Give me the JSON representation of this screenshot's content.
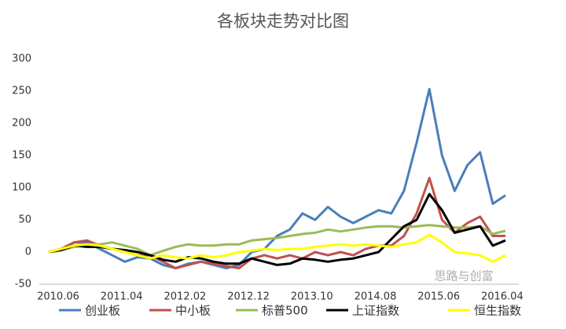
{
  "chart_data": {
    "type": "line",
    "title": "各板块走势对比图",
    "categories": [
      "2010.06",
      null,
      null,
      null,
      null,
      "2011.04",
      null,
      null,
      null,
      null,
      "2012.02",
      null,
      null,
      null,
      null,
      "2012.12",
      null,
      null,
      null,
      null,
      "2013.10",
      null,
      null,
      null,
      null,
      "2014.08",
      null,
      null,
      null,
      null,
      "2015.06",
      null,
      null,
      null,
      null,
      "2016.04",
      null
    ],
    "series": [
      {
        "name": "创业板",
        "color": "#4a7ebb",
        "values": [
          0,
          5,
          15,
          15,
          5,
          -5,
          -15,
          -8,
          -10,
          -20,
          -25,
          -18,
          -15,
          -20,
          -25,
          -20,
          0,
          5,
          25,
          35,
          60,
          50,
          70,
          55,
          45,
          55,
          65,
          60,
          95,
          170,
          253,
          150,
          95,
          135,
          155,
          75,
          88
        ]
      },
      {
        "name": "中小板",
        "color": "#c0504d",
        "values": [
          0,
          5,
          15,
          18,
          10,
          5,
          0,
          -5,
          -5,
          -15,
          -25,
          -20,
          -15,
          -18,
          -22,
          -25,
          -10,
          -5,
          -10,
          -5,
          -10,
          0,
          -5,
          0,
          -5,
          5,
          10,
          10,
          25,
          60,
          115,
          50,
          30,
          45,
          55,
          25,
          25
        ]
      },
      {
        "name": "标普500",
        "color": "#9bbb59",
        "values": [
          0,
          3,
          8,
          12,
          12,
          15,
          10,
          5,
          -5,
          2,
          8,
          12,
          10,
          10,
          12,
          12,
          18,
          20,
          22,
          25,
          28,
          30,
          35,
          32,
          35,
          38,
          40,
          40,
          38,
          40,
          42,
          40,
          38,
          38,
          40,
          28,
          33
        ]
      },
      {
        "name": "上证指数",
        "color": "#000000",
        "values": [
          0,
          3,
          10,
          8,
          8,
          5,
          3,
          0,
          -5,
          -12,
          -15,
          -8,
          -10,
          -15,
          -18,
          -18,
          -10,
          -15,
          -20,
          -18,
          -10,
          -12,
          -15,
          -12,
          -10,
          -5,
          0,
          20,
          40,
          50,
          90,
          65,
          30,
          35,
          40,
          10,
          18
        ]
      },
      {
        "name": "恒生指数",
        "color": "#ffff00",
        "values": [
          0,
          5,
          10,
          12,
          10,
          5,
          0,
          -5,
          -10,
          -5,
          -8,
          -10,
          -5,
          -8,
          -5,
          0,
          2,
          5,
          3,
          5,
          5,
          8,
          10,
          12,
          10,
          12,
          10,
          8,
          12,
          15,
          27,
          15,
          0,
          -2,
          -5,
          -15,
          -5
        ]
      }
    ],
    "ylim": [
      -50,
      300
    ],
    "yticks": [
      -50,
      0,
      50,
      100,
      150,
      200,
      250,
      300
    ],
    "grid": false,
    "legend": "bottom",
    "watermark": "思路与创富"
  }
}
